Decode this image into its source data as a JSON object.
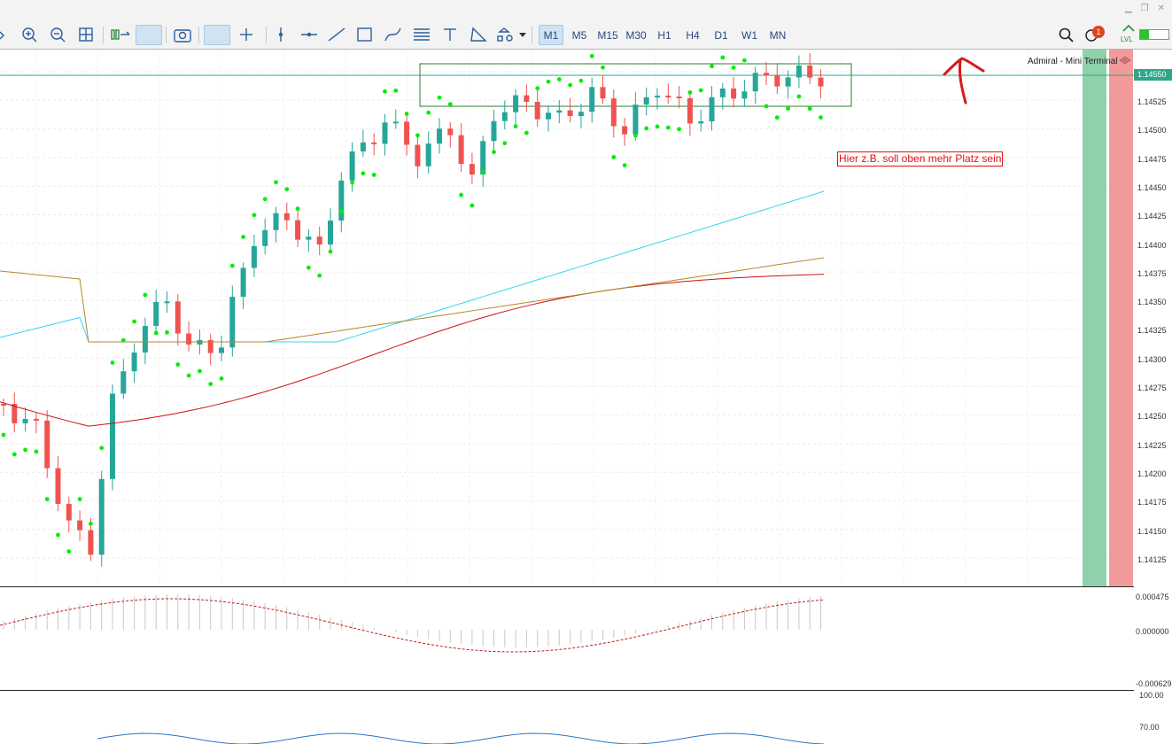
{
  "timeframes": [
    {
      "label": "M1",
      "active": true
    },
    {
      "label": "M5",
      "active": false
    },
    {
      "label": "M15",
      "active": false
    },
    {
      "label": "M30",
      "active": false
    },
    {
      "label": "H1",
      "active": false
    },
    {
      "label": "H4",
      "active": false
    },
    {
      "label": "D1",
      "active": false
    },
    {
      "label": "W1",
      "active": false
    },
    {
      "label": "MN",
      "active": false
    }
  ],
  "toolbar": {
    "notification_count": "1",
    "lvl_label": "LVL",
    "tools": [
      "bar-chart-icon",
      "zoom-in-icon",
      "zoom-out-icon",
      "grid-icon",
      "scroll-end-icon",
      "autoscroll-icon",
      "screenshot-icon",
      "cursor-icon",
      "crosshair-icon",
      "vertical-line-icon",
      "horizontal-line-icon",
      "trend-line-icon",
      "rectangle-icon",
      "fibonacci-icon",
      "channel-icon",
      "text-icon",
      "shapes-icon",
      "more-tools-icon"
    ]
  },
  "mini_terminal_label": "Admiral - Mini Terminal",
  "annotation_text": "Hier z.B. soll oben mehr Platz sein",
  "current_price": "1.14550",
  "price_axis": [
    "1.14525",
    "1.14500",
    "1.14475",
    "1.14450",
    "1.14425",
    "1.14400",
    "1.14375",
    "1.14350",
    "1.14325",
    "1.14300",
    "1.14275",
    "1.14250",
    "1.14225",
    "1.14200",
    "1.14175",
    "1.14150",
    "1.14125"
  ],
  "macd_axis": [
    "0.000475",
    "0.000000",
    "-0.000629"
  ],
  "rsi_axis": [
    "100.00",
    "70.00"
  ],
  "colors": {
    "bull_candle": "#26a69a",
    "bear_candle": "#ef5350",
    "sar_dots": "#00ee00",
    "ma_red": "#cc1111",
    "ma_cyan": "#33d6f2",
    "ma_olive": "#b08a2a",
    "current_price_line": "#2fa68a",
    "box_border": "#2e7d32"
  }
}
